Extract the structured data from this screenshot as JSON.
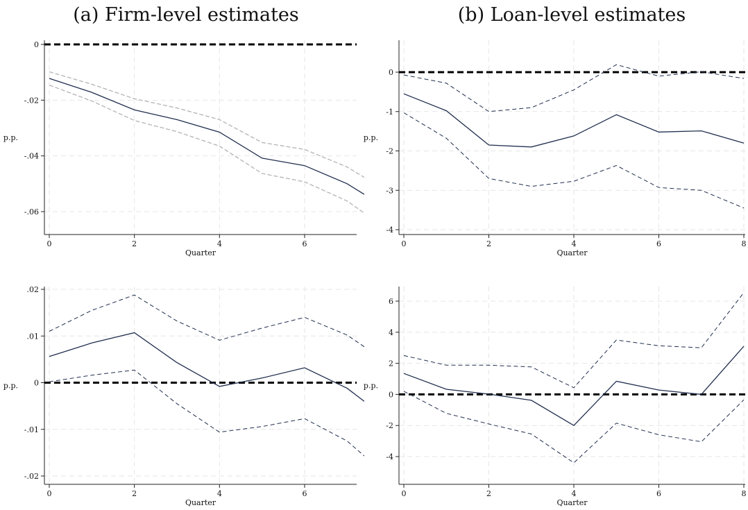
{
  "panels": {
    "a_title": "(a) Firm-level estimates",
    "b_title": "(b) Loan-level estimates"
  },
  "colors": {
    "estimate_line": "#1f2d4d",
    "ci_line_loan": "#1f2d4d",
    "ci_line_firm_top": "#b8b8b8",
    "zero_line": "#000000",
    "grid": "#e6e6e6"
  },
  "chart_data": [
    {
      "id": "firm-top",
      "type": "line",
      "title": "",
      "xlabel": "Quarter",
      "ylabel": "p.p.",
      "xlim": [
        0,
        7.4
      ],
      "ylim": [
        -0.069,
        0.001
      ],
      "xticks": [
        0,
        2,
        4,
        6
      ],
      "xtick_labels": [
        "0",
        "2",
        "4",
        "6"
      ],
      "yticks": [
        0,
        -0.02,
        -0.04,
        -0.06
      ],
      "ytick_labels": [
        "0",
        "-.02",
        "-.04",
        "-.06"
      ],
      "grid": true,
      "x": [
        0,
        1,
        2,
        3,
        4,
        5,
        6,
        7,
        7.4
      ],
      "estimate": [
        -0.0122,
        -0.0172,
        -0.0235,
        -0.027,
        -0.0315,
        -0.0408,
        -0.0435,
        -0.05,
        -0.0538
      ],
      "ci_upper": [
        -0.0098,
        -0.0143,
        -0.0195,
        -0.0228,
        -0.027,
        -0.0352,
        -0.0377,
        -0.044,
        -0.0477
      ],
      "ci_lower": [
        -0.0146,
        -0.0203,
        -0.0273,
        -0.0313,
        -0.0365,
        -0.0463,
        -0.0493,
        -0.0562,
        -0.0605
      ],
      "ci_style": "light"
    },
    {
      "id": "loan-top",
      "type": "line",
      "title": "",
      "xlabel": "Quarter",
      "ylabel": "p.p.",
      "xlim": [
        0,
        8
      ],
      "ylim": [
        -4.1,
        0.45
      ],
      "xticks": [
        0,
        2,
        4,
        6,
        8
      ],
      "xtick_labels": [
        "0",
        "2",
        "4",
        "6",
        "8"
      ],
      "yticks": [
        0,
        -1,
        -2,
        -3,
        -4
      ],
      "ytick_labels": [
        "0",
        "-1",
        "-2",
        "-3",
        "-4"
      ],
      "grid": true,
      "x": [
        0,
        1,
        2,
        3,
        4,
        5,
        6,
        7,
        8
      ],
      "estimate": [
        -0.55,
        -0.98,
        -1.85,
        -1.9,
        -1.62,
        -1.08,
        -1.52,
        -1.49,
        -1.8
      ],
      "ci_upper": [
        -0.07,
        -0.28,
        -1.0,
        -0.9,
        -0.45,
        0.19,
        -0.1,
        0.01,
        -0.16
      ],
      "ci_lower": [
        -1.03,
        -1.68,
        -2.7,
        -2.9,
        -2.77,
        -2.37,
        -2.93,
        -3.0,
        -3.45
      ],
      "ci_style": "dashed"
    },
    {
      "id": "firm-bottom",
      "type": "line",
      "title": "",
      "xlabel": "Quarter",
      "ylabel": "p.p.",
      "xlim": [
        0,
        7.4
      ],
      "ylim": [
        -0.021,
        0.0215
      ],
      "xticks": [
        0,
        2,
        4,
        6
      ],
      "xtick_labels": [
        "0",
        "2",
        "4",
        "6"
      ],
      "yticks": [
        0.02,
        0.01,
        0,
        -0.01,
        -0.02
      ],
      "ytick_labels": [
        ".02",
        ".01",
        "0",
        "-.01",
        "-.02"
      ],
      "grid": true,
      "x": [
        0,
        1,
        2,
        3,
        4,
        5,
        6,
        7,
        7.4
      ],
      "estimate": [
        0.0056,
        0.0085,
        0.0107,
        0.0043,
        -0.0008,
        0.001,
        0.0032,
        -0.0012,
        -0.004
      ],
      "ci_upper": [
        0.011,
        0.0155,
        0.0188,
        0.0132,
        0.0091,
        0.0117,
        0.014,
        0.0102,
        0.0077
      ],
      "ci_lower": [
        0.0002,
        0.0016,
        0.0027,
        -0.0045,
        -0.0106,
        -0.0094,
        -0.0077,
        -0.0125,
        -0.0157
      ],
      "ci_style": "dashed"
    },
    {
      "id": "loan-bottom",
      "type": "line",
      "title": "",
      "xlabel": "Quarter",
      "ylabel": "p.p.",
      "xlim": [
        0,
        8
      ],
      "ylim": [
        -4.6,
        6.8
      ],
      "xticks": [
        0,
        2,
        4,
        6,
        8
      ],
      "xtick_labels": [
        "0",
        "2",
        "4",
        "6",
        "8"
      ],
      "yticks": [
        6,
        4,
        2,
        0,
        -2,
        -4
      ],
      "ytick_labels": [
        "6",
        "4",
        "2",
        "0",
        "-2",
        "-4"
      ],
      "grid": true,
      "x": [
        0,
        1,
        2,
        3,
        4,
        5,
        6,
        7,
        8
      ],
      "estimate": [
        1.35,
        0.33,
        0.02,
        -0.38,
        -2.0,
        0.85,
        0.28,
        0.0,
        3.1
      ],
      "ci_upper": [
        2.5,
        1.88,
        1.88,
        1.77,
        0.43,
        3.5,
        3.13,
        3.0,
        6.55
      ],
      "ci_lower": [
        0.2,
        -1.22,
        -1.9,
        -2.55,
        -4.4,
        -1.85,
        -2.6,
        -3.05,
        -0.35
      ],
      "ci_style": "dashed"
    }
  ]
}
